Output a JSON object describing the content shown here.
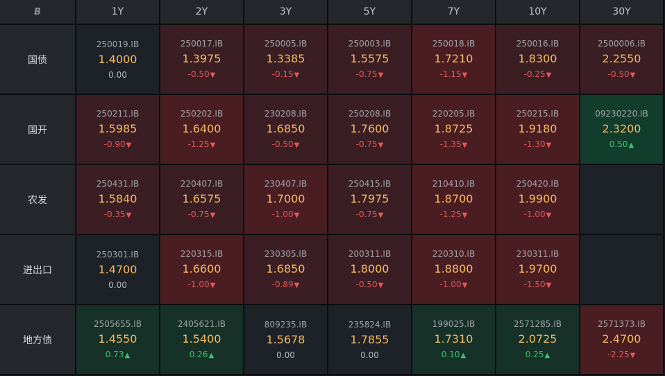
{
  "corner_icon": "logo-b-icon",
  "corner_glyph": "B",
  "tenors": [
    "1Y",
    "2Y",
    "3Y",
    "5Y",
    "7Y",
    "10Y",
    "30Y"
  ],
  "colors": {
    "negative": "#e8575b",
    "positive": "#3fbf73",
    "yield": "#f3b860"
  },
  "rows": [
    {
      "label": "国债",
      "cells": [
        {
          "code": "250019.IB",
          "yield": "1.4000",
          "change": "0.00",
          "dir": "zero",
          "tone": "neutral"
        },
        {
          "code": "250017.IB",
          "yield": "1.3975",
          "change": "-0.50",
          "dir": "down",
          "tone": "down"
        },
        {
          "code": "250005.IB",
          "yield": "1.3385",
          "change": "-0.15",
          "dir": "down",
          "tone": "down"
        },
        {
          "code": "250003.IB",
          "yield": "1.5575",
          "change": "-0.75",
          "dir": "down",
          "tone": "down"
        },
        {
          "code": "250018.IB",
          "yield": "1.7210",
          "change": "-1.15",
          "dir": "down",
          "tone": "down-strong"
        },
        {
          "code": "250016.IB",
          "yield": "1.8300",
          "change": "-0.25",
          "dir": "down",
          "tone": "down"
        },
        {
          "code": "2500006.IB",
          "yield": "2.2550",
          "change": "-0.50",
          "dir": "down",
          "tone": "down"
        }
      ]
    },
    {
      "label": "国开",
      "cells": [
        {
          "code": "250211.IB",
          "yield": "1.5985",
          "change": "-0.90",
          "dir": "down",
          "tone": "down"
        },
        {
          "code": "250202.IB",
          "yield": "1.6400",
          "change": "-1.25",
          "dir": "down",
          "tone": "down-strong"
        },
        {
          "code": "230208.IB",
          "yield": "1.6850",
          "change": "-0.50",
          "dir": "down",
          "tone": "down"
        },
        {
          "code": "250208.IB",
          "yield": "1.7600",
          "change": "-0.75",
          "dir": "down",
          "tone": "down"
        },
        {
          "code": "220205.IB",
          "yield": "1.8725",
          "change": "-1.35",
          "dir": "down",
          "tone": "down-strong"
        },
        {
          "code": "250215.IB",
          "yield": "1.9180",
          "change": "-1.30",
          "dir": "down",
          "tone": "down-strong"
        },
        {
          "code": "09230220.IB",
          "yield": "2.3200",
          "change": "0.50",
          "dir": "up",
          "tone": "up-strong"
        }
      ]
    },
    {
      "label": "农发",
      "cells": [
        {
          "code": "250431.IB",
          "yield": "1.5840",
          "change": "-0.35",
          "dir": "down",
          "tone": "down"
        },
        {
          "code": "220407.IB",
          "yield": "1.6575",
          "change": "-0.75",
          "dir": "down",
          "tone": "down"
        },
        {
          "code": "230407.IB",
          "yield": "1.7000",
          "change": "-1.00",
          "dir": "down",
          "tone": "down-strong"
        },
        {
          "code": "250415.IB",
          "yield": "1.7975",
          "change": "-0.75",
          "dir": "down",
          "tone": "down"
        },
        {
          "code": "210410.IB",
          "yield": "1.8700",
          "change": "-1.25",
          "dir": "down",
          "tone": "down-strong"
        },
        {
          "code": "250420.IB",
          "yield": "1.9900",
          "change": "-1.00",
          "dir": "down",
          "tone": "down-strong"
        },
        null
      ]
    },
    {
      "label": "进出口",
      "cells": [
        {
          "code": "250301.IB",
          "yield": "1.4700",
          "change": "0.00",
          "dir": "zero",
          "tone": "neutral"
        },
        {
          "code": "220315.IB",
          "yield": "1.6600",
          "change": "-1.00",
          "dir": "down",
          "tone": "down-strong"
        },
        {
          "code": "230305.IB",
          "yield": "1.6850",
          "change": "-0.89",
          "dir": "down",
          "tone": "down"
        },
        {
          "code": "200311.IB",
          "yield": "1.8000",
          "change": "-0.50",
          "dir": "down",
          "tone": "down"
        },
        {
          "code": "220310.IB",
          "yield": "1.8800",
          "change": "-1.00",
          "dir": "down",
          "tone": "down-strong"
        },
        {
          "code": "230311.IB",
          "yield": "1.9700",
          "change": "-1.50",
          "dir": "down",
          "tone": "down-strong"
        },
        null
      ]
    },
    {
      "label": "地方债",
      "cells": [
        {
          "code": "2505655.IB",
          "yield": "1.4550",
          "change": "0.73",
          "dir": "up",
          "tone": "up"
        },
        {
          "code": "2405621.IB",
          "yield": "1.5400",
          "change": "0.26",
          "dir": "up",
          "tone": "up"
        },
        {
          "code": "809235.IB",
          "yield": "1.5678",
          "change": "0.00",
          "dir": "zero",
          "tone": "neutral"
        },
        {
          "code": "235824.IB",
          "yield": "1.7855",
          "change": "0.00",
          "dir": "zero",
          "tone": "neutral"
        },
        {
          "code": "199025.IB",
          "yield": "1.7310",
          "change": "0.10",
          "dir": "up",
          "tone": "up"
        },
        {
          "code": "2571285.IB",
          "yield": "2.0725",
          "change": "0.25",
          "dir": "up",
          "tone": "up"
        },
        {
          "code": "2571373.IB",
          "yield": "2.4700",
          "change": "-2.25",
          "dir": "down",
          "tone": "down-strong"
        }
      ]
    }
  ]
}
